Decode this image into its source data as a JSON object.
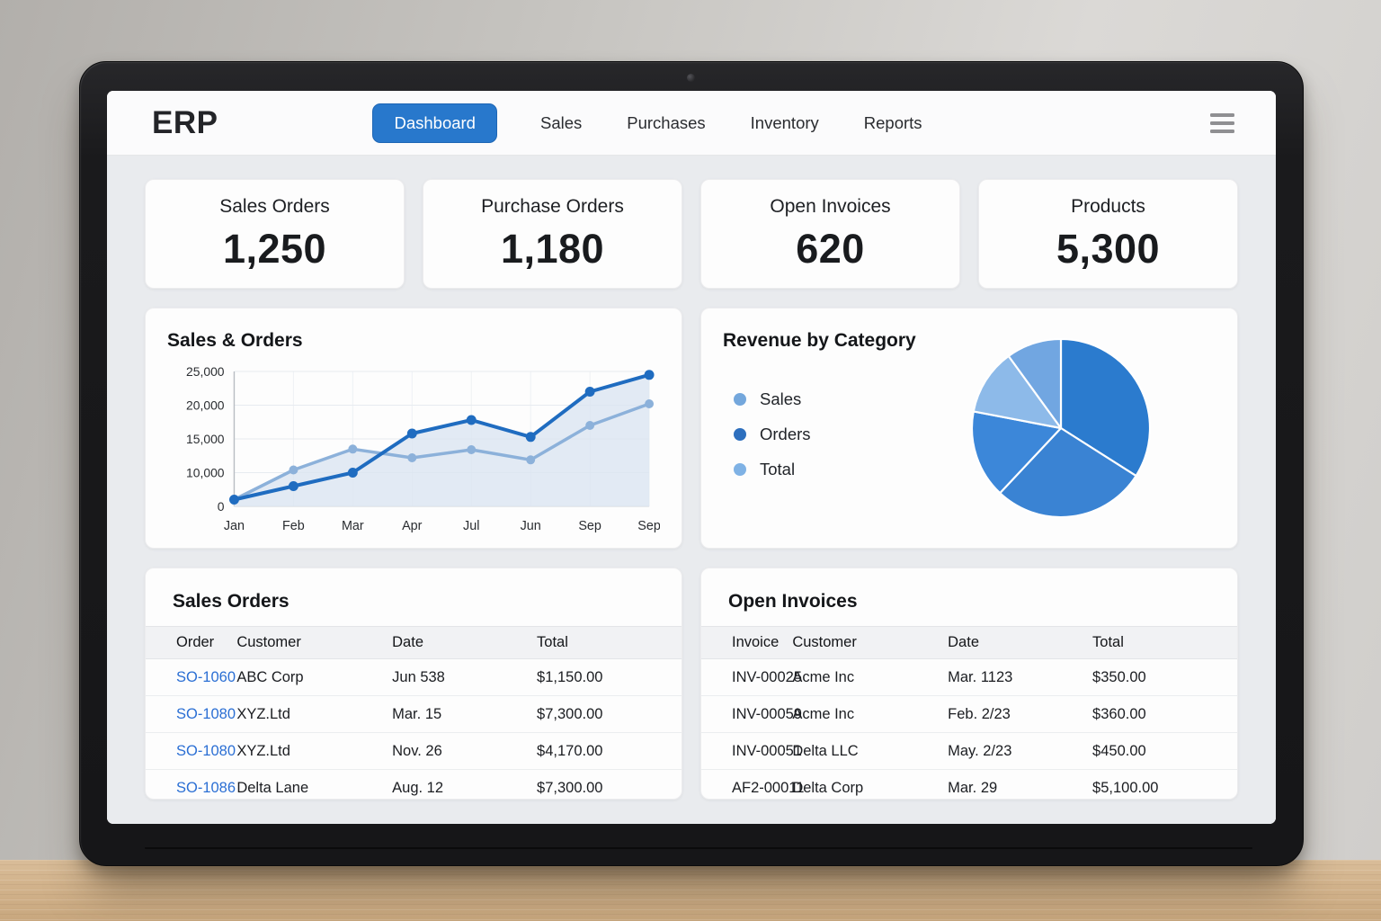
{
  "brand": "ERP",
  "nav": {
    "items": [
      {
        "label": "Dashboard",
        "active": true
      },
      {
        "label": "Sales",
        "active": false
      },
      {
        "label": "Purchases",
        "active": false
      },
      {
        "label": "Inventory",
        "active": false
      },
      {
        "label": "Reports",
        "active": false
      }
    ],
    "menu_icon": "hamburger-icon",
    "active_color": "#2878cc"
  },
  "kpis": [
    {
      "label": "Sales Orders",
      "value": "1,250"
    },
    {
      "label": "Purchase Orders",
      "value": "1,180"
    },
    {
      "label": "Open Invoices",
      "value": "620"
    },
    {
      "label": "Products",
      "value": "5,300"
    }
  ],
  "chart_data": [
    {
      "type": "line",
      "title": "Sales & Orders",
      "x": [
        "Jan",
        "Feb",
        "Mar",
        "Apr",
        "Jul",
        "Jun",
        "Sep",
        "Sep"
      ],
      "series": [
        {
          "name": "line-dark",
          "color": "#1f6cc0",
          "values": [
            2000,
            6000,
            10000,
            15800,
            17800,
            15300,
            22000,
            24500
          ]
        },
        {
          "name": "line-light",
          "color": "#8cb1da",
          "values": [
            2000,
            10400,
            13500,
            12200,
            13400,
            11900,
            17000,
            20200
          ]
        }
      ],
      "ylim": [
        0,
        25000
      ],
      "ytick_labels": [
        "25,000",
        "20,000",
        "15,000",
        "10,000",
        "0"
      ],
      "ytick_values": [
        25000,
        20000,
        15000,
        10000,
        0
      ],
      "grid": true,
      "area_fill": "#dbe5f1",
      "legend_position": "none"
    },
    {
      "type": "pie",
      "title": "Revenue by Category",
      "legend": [
        {
          "label": "Sales",
          "color": "#74a7dc"
        },
        {
          "label": "Orders",
          "color": "#2d6fbe"
        },
        {
          "label": "Total",
          "color": "#7fb2e5"
        }
      ],
      "legend_position": "left",
      "slices": [
        {
          "pct": 34,
          "color": "#2b7bce"
        },
        {
          "pct": 28,
          "color": "#3a83d3"
        },
        {
          "pct": 16,
          "color": "#3c87d9"
        },
        {
          "pct": 12,
          "color": "#8dbae9"
        },
        {
          "pct": 10,
          "color": "#71a6e1"
        }
      ]
    }
  ],
  "tables": [
    {
      "title": "Sales Orders",
      "columns": [
        "Order",
        "Customer",
        "Date",
        "Total"
      ],
      "id_color": "#2b6fd4",
      "id_interactable": true,
      "rows": [
        [
          "SO-1060",
          "ABC Corp",
          "Jun 538",
          "$1,150.00"
        ],
        [
          "SO-1080",
          "XYZ.Ltd",
          "Mar. 15",
          "$7,300.00"
        ],
        [
          "SO-1080",
          "XYZ.Ltd",
          "Nov. 26",
          "$4,170.00"
        ],
        [
          "SO-1086",
          "Delta Lane",
          "Aug. 12",
          "$7,300.00"
        ]
      ]
    },
    {
      "title": "Open Invoices",
      "columns": [
        "Invoice",
        "Customer",
        "Date",
        "Total"
      ],
      "id_color": "#1b1d21",
      "id_interactable": false,
      "rows": [
        [
          "INV-00025",
          "Acme Inc",
          "Mar. 1123",
          "$350.00"
        ],
        [
          "INV-00059",
          "Acme Inc",
          "Feb. 2/23",
          "$360.00"
        ],
        [
          "INV-00051",
          "Delta LLC",
          "May. 2/23",
          "$450.00"
        ],
        [
          "AF2-00011",
          "Delta Corp",
          "Mar. 29",
          "$5,100.00"
        ]
      ]
    }
  ]
}
